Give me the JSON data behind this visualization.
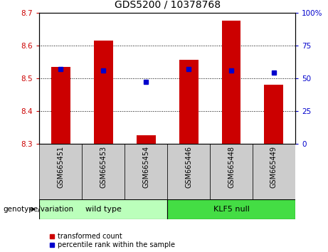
{
  "title": "GDS5200 / 10378768",
  "categories": [
    "GSM665451",
    "GSM665453",
    "GSM665454",
    "GSM665446",
    "GSM665448",
    "GSM665449"
  ],
  "bar_bottoms": [
    8.3,
    8.3,
    8.3,
    8.3,
    8.3,
    8.3
  ],
  "bar_tops": [
    8.535,
    8.615,
    8.325,
    8.555,
    8.675,
    8.48
  ],
  "percentile_ranks": [
    57,
    56,
    47,
    57,
    56,
    54
  ],
  "ylim_left": [
    8.3,
    8.7
  ],
  "ylim_right": [
    0,
    100
  ],
  "yticks_left": [
    8.3,
    8.4,
    8.5,
    8.6,
    8.7
  ],
  "yticks_right": [
    0,
    25,
    50,
    75,
    100
  ],
  "bar_color": "#cc0000",
  "marker_color": "#0000cc",
  "bar_width": 0.45,
  "groups": [
    {
      "label": "wild type",
      "indices": [
        0,
        1,
        2
      ],
      "color": "#bbffbb"
    },
    {
      "label": "KLF5 null",
      "indices": [
        3,
        4,
        5
      ],
      "color": "#44dd44"
    }
  ],
  "group_label": "genotype/variation",
  "legend_items": [
    {
      "label": "transformed count",
      "color": "#cc0000"
    },
    {
      "label": "percentile rank within the sample",
      "color": "#0000cc"
    }
  ],
  "tick_label_color_left": "#cc0000",
  "tick_label_color_right": "#0000cc",
  "grid_style": "dotted"
}
